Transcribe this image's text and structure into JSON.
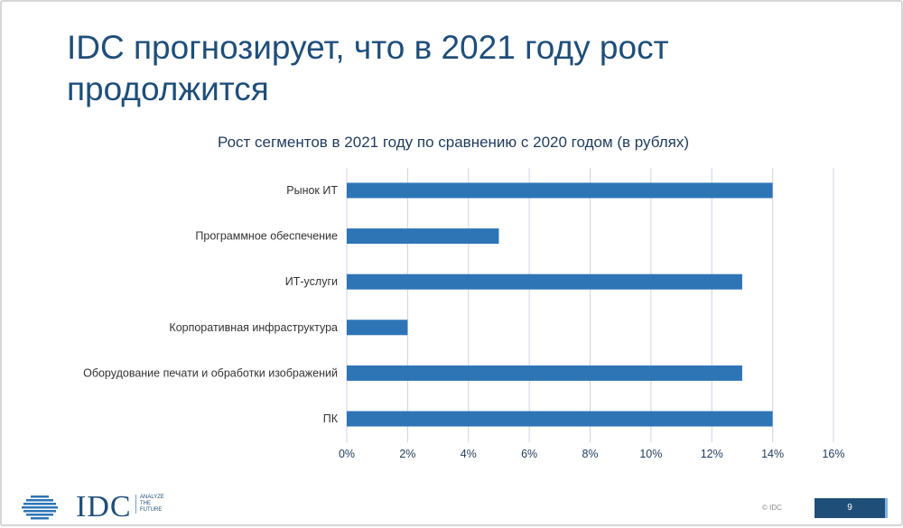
{
  "slide": {
    "title": "IDC прогнозирует, что в 2021 году рост продолжится",
    "copyright": "© IDC",
    "page_number": "9",
    "logo_text": "IDC",
    "tagline": [
      "ANALYZE",
      "THE",
      "FUTURE"
    ]
  },
  "chart_data": {
    "type": "bar",
    "orientation": "horizontal",
    "title": "Рост сегментов в 2021 году по сравнению с 2020 годом (в рублях)",
    "categories": [
      "Рынок ИТ",
      "Программное обеспечение",
      "ИТ-услуги",
      "Корпоративная инфраструктура",
      "Оборудование печати и обработки изображений",
      "ПК"
    ],
    "values": [
      14,
      5,
      13,
      2,
      13,
      14
    ],
    "xlim": [
      0,
      16
    ],
    "xticks": [
      0,
      2,
      4,
      6,
      8,
      10,
      12,
      14,
      16
    ],
    "tick_format": "%",
    "grid": "vertical",
    "colors": {
      "bar": "#2e75b6",
      "grid": "#d0d0e6",
      "text": "#1f3b5c"
    }
  }
}
